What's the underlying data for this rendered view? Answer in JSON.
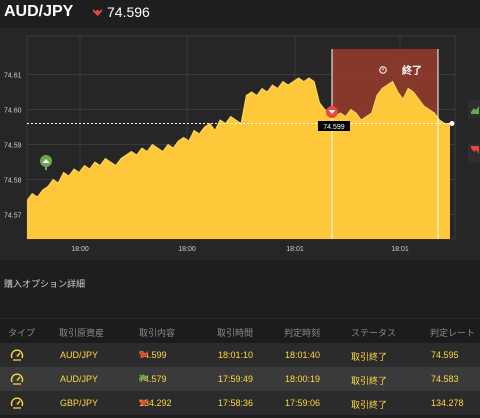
{
  "header": {
    "pair": "AUD/JPY",
    "direction_icon": "down-arrow-icon",
    "price": "74.596"
  },
  "chart_data": {
    "type": "area",
    "y_ticks": [
      "74.61",
      "74.60",
      "74.59",
      "74.58",
      "74.57"
    ],
    "ylim": [
      74.563,
      74.621
    ],
    "x_ticks": [
      "18:00",
      "18:00",
      "18:01",
      "18:01"
    ],
    "current_rate": 74.596,
    "entry_marker": {
      "label": "74.599",
      "value": 74.599,
      "direction": "down"
    },
    "start_marker": {
      "value": 74.583,
      "direction": "up"
    },
    "end_label": "終了",
    "colors": {
      "area": "#ffc83a",
      "area_top": "#ffd860",
      "expired_zone": "#8b3a2a",
      "down": "#e8473a",
      "up": "#6aa84f"
    },
    "series": [
      {
        "values": [
          74.574,
          74.576,
          74.575,
          74.577,
          74.578,
          74.58,
          74.579,
          74.582,
          74.581,
          74.583,
          74.582,
          74.584,
          74.583,
          74.585,
          74.584,
          74.586,
          74.585,
          74.584,
          74.586,
          74.587,
          74.588,
          74.587,
          74.589,
          74.588,
          74.59,
          74.589,
          74.588,
          74.59,
          74.589,
          74.591,
          74.592,
          74.591,
          74.594,
          74.593,
          74.595,
          74.596,
          74.594,
          74.597,
          74.596,
          74.598,
          74.597,
          74.596,
          74.604,
          74.605,
          74.604,
          74.606,
          74.605,
          74.607,
          74.606,
          74.608,
          74.607,
          74.608,
          74.609,
          74.608,
          74.609,
          74.608,
          74.602,
          74.6,
          74.599,
          74.598,
          74.599,
          74.598,
          74.6,
          74.599,
          74.597,
          74.598,
          74.599,
          74.604,
          74.606,
          74.607,
          74.608,
          74.605,
          74.603,
          74.606,
          74.605,
          74.603,
          74.601,
          74.6,
          74.599,
          74.597,
          74.596,
          74.596
        ]
      }
    ]
  },
  "section_title": "購入オプション詳細",
  "table": {
    "headers": [
      "タイプ",
      "取引原資産",
      "取引内容",
      "取引時間",
      "判定時刻",
      "ステータス",
      "判定レート"
    ],
    "rows": [
      {
        "type_icon": "gauge-icon",
        "asset": "AUD/JPY",
        "dir": "down",
        "entry": "74.599",
        "time": "18:01:10",
        "judge": "18:01:40",
        "status": "取引終了",
        "rate": "74.595"
      },
      {
        "type_icon": "gauge-icon",
        "asset": "AUD/JPY",
        "dir": "up",
        "entry": "74.579",
        "time": "17:59:49",
        "judge": "18:00:19",
        "status": "取引終了",
        "rate": "74.583"
      },
      {
        "type_icon": "gauge-icon",
        "asset": "GBP/JPY",
        "dir": "down",
        "entry": "134.292",
        "time": "17:58:36",
        "judge": "17:59:06",
        "status": "取引終了",
        "rate": "134.278"
      }
    ]
  }
}
